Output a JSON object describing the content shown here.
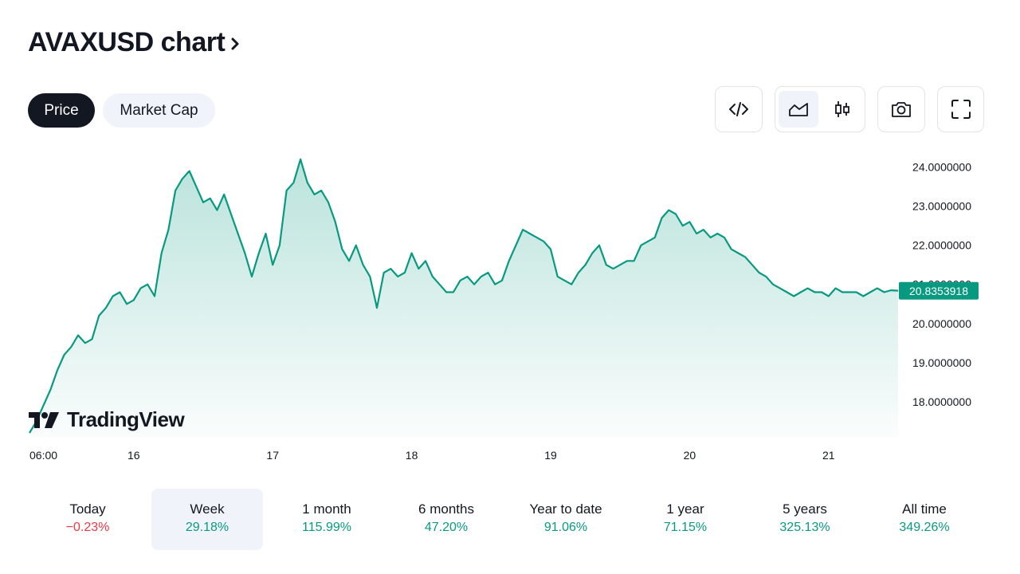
{
  "header": {
    "title": "AVAXUSD chart",
    "title_arrow": "›"
  },
  "tabs": {
    "price": "Price",
    "market_cap": "Market Cap",
    "active": "price"
  },
  "toolbar": {
    "embed_icon": "code-icon",
    "area_icon": "area-chart-icon",
    "candles_icon": "candlestick-icon",
    "snapshot_icon": "camera-icon",
    "fullscreen_icon": "fullscreen-icon",
    "active_style": "area"
  },
  "brand": {
    "name": "TradingView",
    "logo_icon": "tradingview-logo-icon"
  },
  "chart_data": {
    "type": "area",
    "symbol": "AVAXUSD",
    "line_color": "#089981",
    "fill_color_top": "#bfe5dc",
    "last_price_label": "20.8353918",
    "last_price": 20.8353918,
    "y_ticks": [
      "24.0000000",
      "23.0000000",
      "22.0000000",
      "21.0000000",
      "20.0000000",
      "19.0000000",
      "18.0000000"
    ],
    "y_tick_values": [
      24,
      23,
      22,
      21,
      20,
      19,
      18
    ],
    "ylim": [
      17.1,
      24.4
    ],
    "x_ticks": [
      "06:00",
      "16",
      "17",
      "18",
      "19",
      "20",
      "21"
    ],
    "x_tick_positions": [
      0.0,
      0.75,
      1.75,
      2.75,
      3.75,
      4.75,
      5.75
    ],
    "xlim": [
      0.0,
      6.25
    ],
    "x_unit": "days since Nov 15 06:00",
    "series": [
      {
        "x": [
          0.0,
          0.05,
          0.1,
          0.15,
          0.2,
          0.25,
          0.3,
          0.35,
          0.4,
          0.45,
          0.5,
          0.55,
          0.6,
          0.65,
          0.7,
          0.75,
          0.8,
          0.85,
          0.9,
          0.95,
          1.0,
          1.05,
          1.1,
          1.15,
          1.2,
          1.25,
          1.3,
          1.35,
          1.4,
          1.45,
          1.5,
          1.55,
          1.6,
          1.65,
          1.7,
          1.75,
          1.8,
          1.85,
          1.9,
          1.95,
          2.0,
          2.05,
          2.1,
          2.15,
          2.2,
          2.25,
          2.3,
          2.35,
          2.4,
          2.45,
          2.5,
          2.55,
          2.6,
          2.65,
          2.7,
          2.75,
          2.8,
          2.85,
          2.9,
          2.95,
          3.0,
          3.05,
          3.1,
          3.15,
          3.2,
          3.25,
          3.3,
          3.35,
          3.4,
          3.45,
          3.5,
          3.55,
          3.6,
          3.65,
          3.7,
          3.75,
          3.8,
          3.85,
          3.9,
          3.95,
          4.0,
          4.05,
          4.1,
          4.15,
          4.2,
          4.25,
          4.3,
          4.35,
          4.4,
          4.45,
          4.5,
          4.55,
          4.6,
          4.65,
          4.7,
          4.75,
          4.8,
          4.85,
          4.9,
          4.95,
          5.0,
          5.05,
          5.1,
          5.15,
          5.2,
          5.25,
          5.3,
          5.35,
          5.4,
          5.45,
          5.5,
          5.55,
          5.6,
          5.65,
          5.7,
          5.75,
          5.8,
          5.85,
          5.9,
          5.95,
          6.0,
          6.05,
          6.1,
          6.15,
          6.2,
          6.25
        ],
        "y": [
          17.2,
          17.5,
          17.9,
          18.3,
          18.8,
          19.2,
          19.4,
          19.7,
          19.5,
          19.6,
          20.2,
          20.4,
          20.7,
          20.8,
          20.5,
          20.6,
          20.9,
          21.0,
          20.7,
          21.8,
          22.4,
          23.4,
          23.7,
          23.9,
          23.5,
          23.1,
          23.2,
          22.9,
          23.3,
          22.8,
          22.3,
          21.8,
          21.2,
          21.8,
          22.3,
          21.5,
          22.0,
          23.4,
          23.6,
          24.2,
          23.6,
          23.3,
          23.4,
          23.1,
          22.6,
          21.9,
          21.6,
          22.0,
          21.5,
          21.2,
          20.4,
          21.3,
          21.4,
          21.2,
          21.3,
          21.8,
          21.4,
          21.6,
          21.2,
          21.0,
          20.8,
          20.8,
          21.1,
          21.2,
          21.0,
          21.2,
          21.3,
          21.0,
          21.1,
          21.6,
          22.0,
          22.4,
          22.3,
          22.2,
          22.1,
          21.9,
          21.2,
          21.1,
          21.0,
          21.3,
          21.5,
          21.8,
          22.0,
          21.5,
          21.4,
          21.5,
          21.6,
          21.6,
          22.0,
          22.1,
          22.2,
          22.7,
          22.9,
          22.8,
          22.5,
          22.6,
          22.3,
          22.4,
          22.2,
          22.3,
          22.2,
          21.9,
          21.8,
          21.7,
          21.5,
          21.3,
          21.2,
          21.0,
          20.9,
          20.8,
          20.7,
          20.8,
          20.9,
          20.8,
          20.8,
          20.7,
          20.9,
          20.8,
          20.8,
          20.8,
          20.7,
          20.8,
          20.9,
          20.8,
          20.85,
          20.84
        ]
      }
    ]
  },
  "periods": [
    {
      "label": "Today",
      "value": "−0.23%",
      "trend": "neg"
    },
    {
      "label": "Week",
      "value": "29.18%",
      "trend": "pos",
      "active": true
    },
    {
      "label": "1 month",
      "value": "115.99%",
      "trend": "pos"
    },
    {
      "label": "6 months",
      "value": "47.20%",
      "trend": "pos"
    },
    {
      "label": "Year to date",
      "value": "91.06%",
      "trend": "pos"
    },
    {
      "label": "1 year",
      "value": "71.15%",
      "trend": "pos"
    },
    {
      "label": "5 years",
      "value": "325.13%",
      "trend": "pos"
    },
    {
      "label": "All time",
      "value": "349.26%",
      "trend": "pos"
    }
  ]
}
